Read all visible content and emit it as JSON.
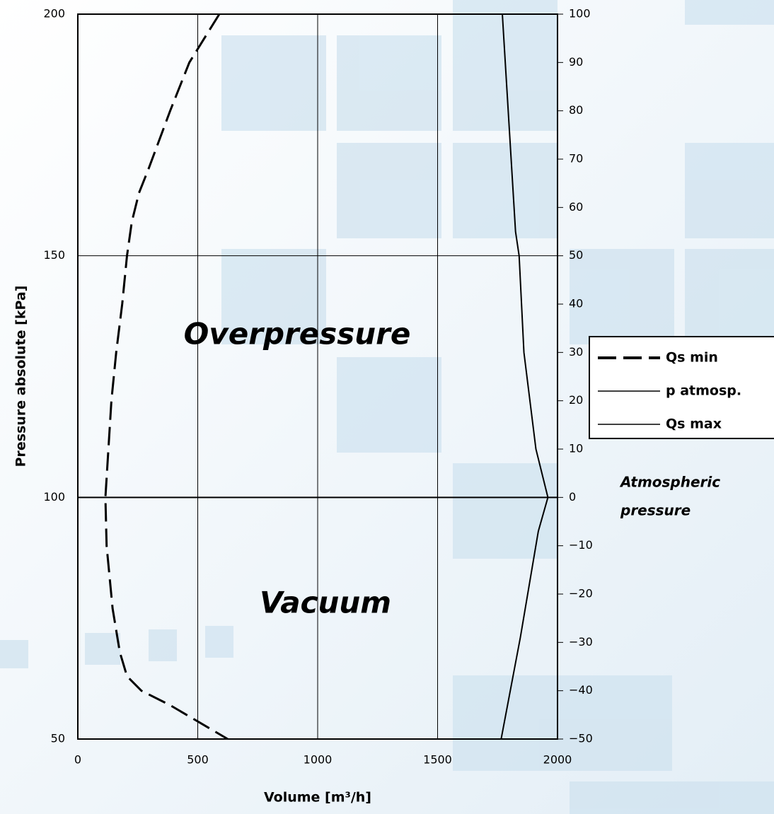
{
  "chart_data": {
    "type": "line",
    "x_label": "Volume [m³/h]",
    "y_label": "Pressure absolute [kPa]",
    "xlim": [
      0,
      2000
    ],
    "xticks": [
      0,
      500,
      1000,
      1500,
      2000
    ],
    "ylim": [
      50,
      200
    ],
    "yticks": [
      50,
      100,
      150,
      200
    ],
    "y2lim": [
      -50,
      100
    ],
    "y2ticks": [
      {
        "value": -50,
        "label": "−50"
      },
      {
        "value": -40,
        "label": "−40"
      },
      {
        "value": -30,
        "label": "−30"
      },
      {
        "value": -20,
        "label": "−20"
      },
      {
        "value": -10,
        "label": "−10"
      },
      0,
      10,
      20,
      30,
      40,
      50,
      60,
      70,
      80,
      90,
      100
    ],
    "grid": true,
    "legend": "right",
    "annotations": [
      "Overpressure",
      "Vacuum"
    ],
    "side_note": [
      "Atmospheric",
      "pressure"
    ],
    "series": [
      {
        "name": "Qs min",
        "color": "#000000",
        "dashed": true,
        "x": [
          590,
          465,
          385,
          295,
          255,
          225,
          205,
          185,
          160,
          140,
          115,
          120,
          145,
          175,
          205,
          265,
          385,
          625
        ],
        "values": [
          200,
          190,
          180,
          168,
          163,
          157,
          150,
          140,
          130,
          120,
          100,
          90,
          77,
          68,
          63,
          60,
          57,
          50
        ]
      },
      {
        "name": "p atmosp.",
        "color": "#000000",
        "dashed": false,
        "x": [
          0,
          2000
        ],
        "values": [
          100,
          100
        ]
      },
      {
        "name": "Qs max",
        "color": "#000000",
        "dashed": false,
        "x": [
          1770,
          1825,
          1840,
          1860,
          1910,
          1960,
          1920,
          1845,
          1765
        ],
        "values": [
          200,
          155,
          150,
          130,
          110,
          100,
          93,
          71,
          50
        ]
      }
    ]
  }
}
